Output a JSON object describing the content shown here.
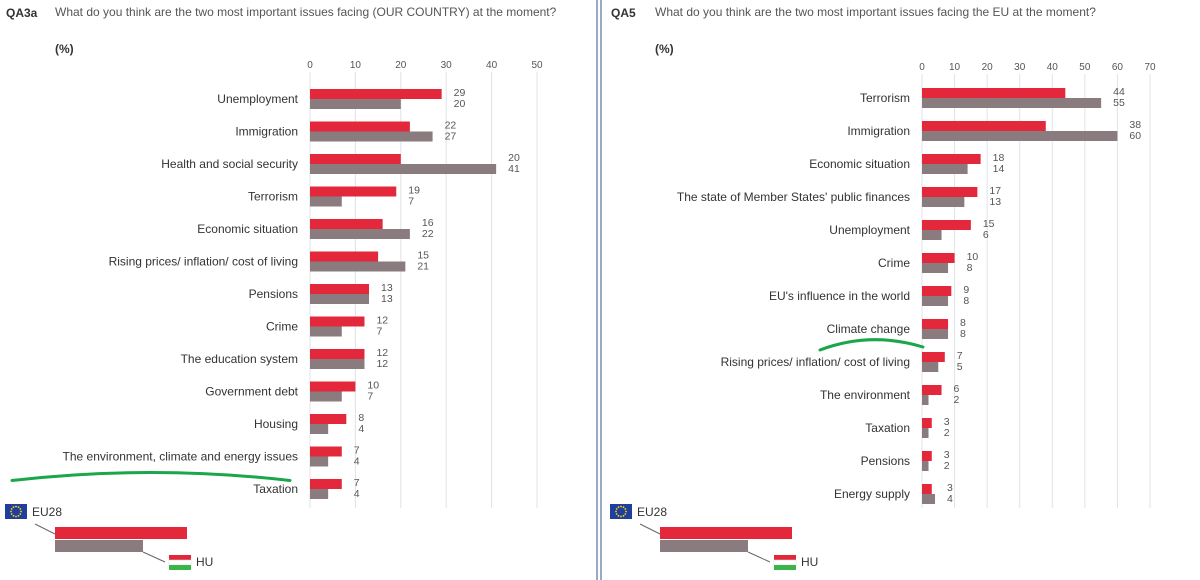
{
  "colors": {
    "eu28": "#e3283c",
    "country": "#8a7b7e",
    "grid": "#dfe3ea",
    "annotation": "#1aa64a",
    "eu_flag": "#1f3f9c",
    "eu_star": "#ffd200",
    "hu_red": "#e0283a",
    "hu_white": "#ffffff",
    "hu_green": "#3ab54a"
  },
  "legend": {
    "eu_label": "EU28",
    "country_label": "HU"
  },
  "chart_data": [
    {
      "id": "QA3a",
      "type": "bar",
      "orientation": "horizontal",
      "question": "What do you think are the two most important issues facing (OUR COUNTRY) at the moment?",
      "unit": "(%)",
      "xlim": [
        0,
        50
      ],
      "ticks": [
        0,
        10,
        20,
        30,
        40,
        50
      ],
      "categories": [
        "Unemployment",
        "Immigration",
        "Health and social security",
        "Terrorism",
        "Economic situation",
        "Rising prices/ inflation/ cost of living",
        "Pensions",
        "Crime",
        "The education system",
        "Government debt",
        "Housing",
        "The environment, climate and energy issues",
        "Taxation"
      ],
      "series": [
        {
          "name": "EU28",
          "values": [
            29,
            22,
            20,
            19,
            16,
            15,
            13,
            12,
            12,
            10,
            8,
            7,
            7
          ]
        },
        {
          "name": "HU",
          "values": [
            20,
            27,
            41,
            7,
            22,
            21,
            13,
            7,
            12,
            7,
            4,
            4,
            4
          ]
        }
      ],
      "highlighted_category": "The environment, climate and energy issues"
    },
    {
      "id": "QA5",
      "type": "bar",
      "orientation": "horizontal",
      "question": "What do you think are the two most important issues facing the EU at the moment?",
      "unit": "(%)",
      "xlim": [
        0,
        70
      ],
      "ticks": [
        0,
        10,
        20,
        30,
        40,
        50,
        60,
        70
      ],
      "categories": [
        "Terrorism",
        "Immigration",
        "Economic situation",
        "The state of Member States' public finances",
        "Unemployment",
        "Crime",
        "EU's influence in the world",
        "Climate change",
        "Rising prices/ inflation/ cost of living",
        "The environment",
        "Taxation",
        "Pensions",
        "Energy supply"
      ],
      "series": [
        {
          "name": "EU28",
          "values": [
            44,
            38,
            18,
            17,
            15,
            10,
            9,
            8,
            7,
            6,
            3,
            3,
            3
          ]
        },
        {
          "name": "HU",
          "values": [
            55,
            60,
            14,
            13,
            6,
            8,
            8,
            8,
            5,
            2,
            2,
            2,
            4
          ]
        }
      ],
      "highlighted_category": "Climate change"
    }
  ]
}
